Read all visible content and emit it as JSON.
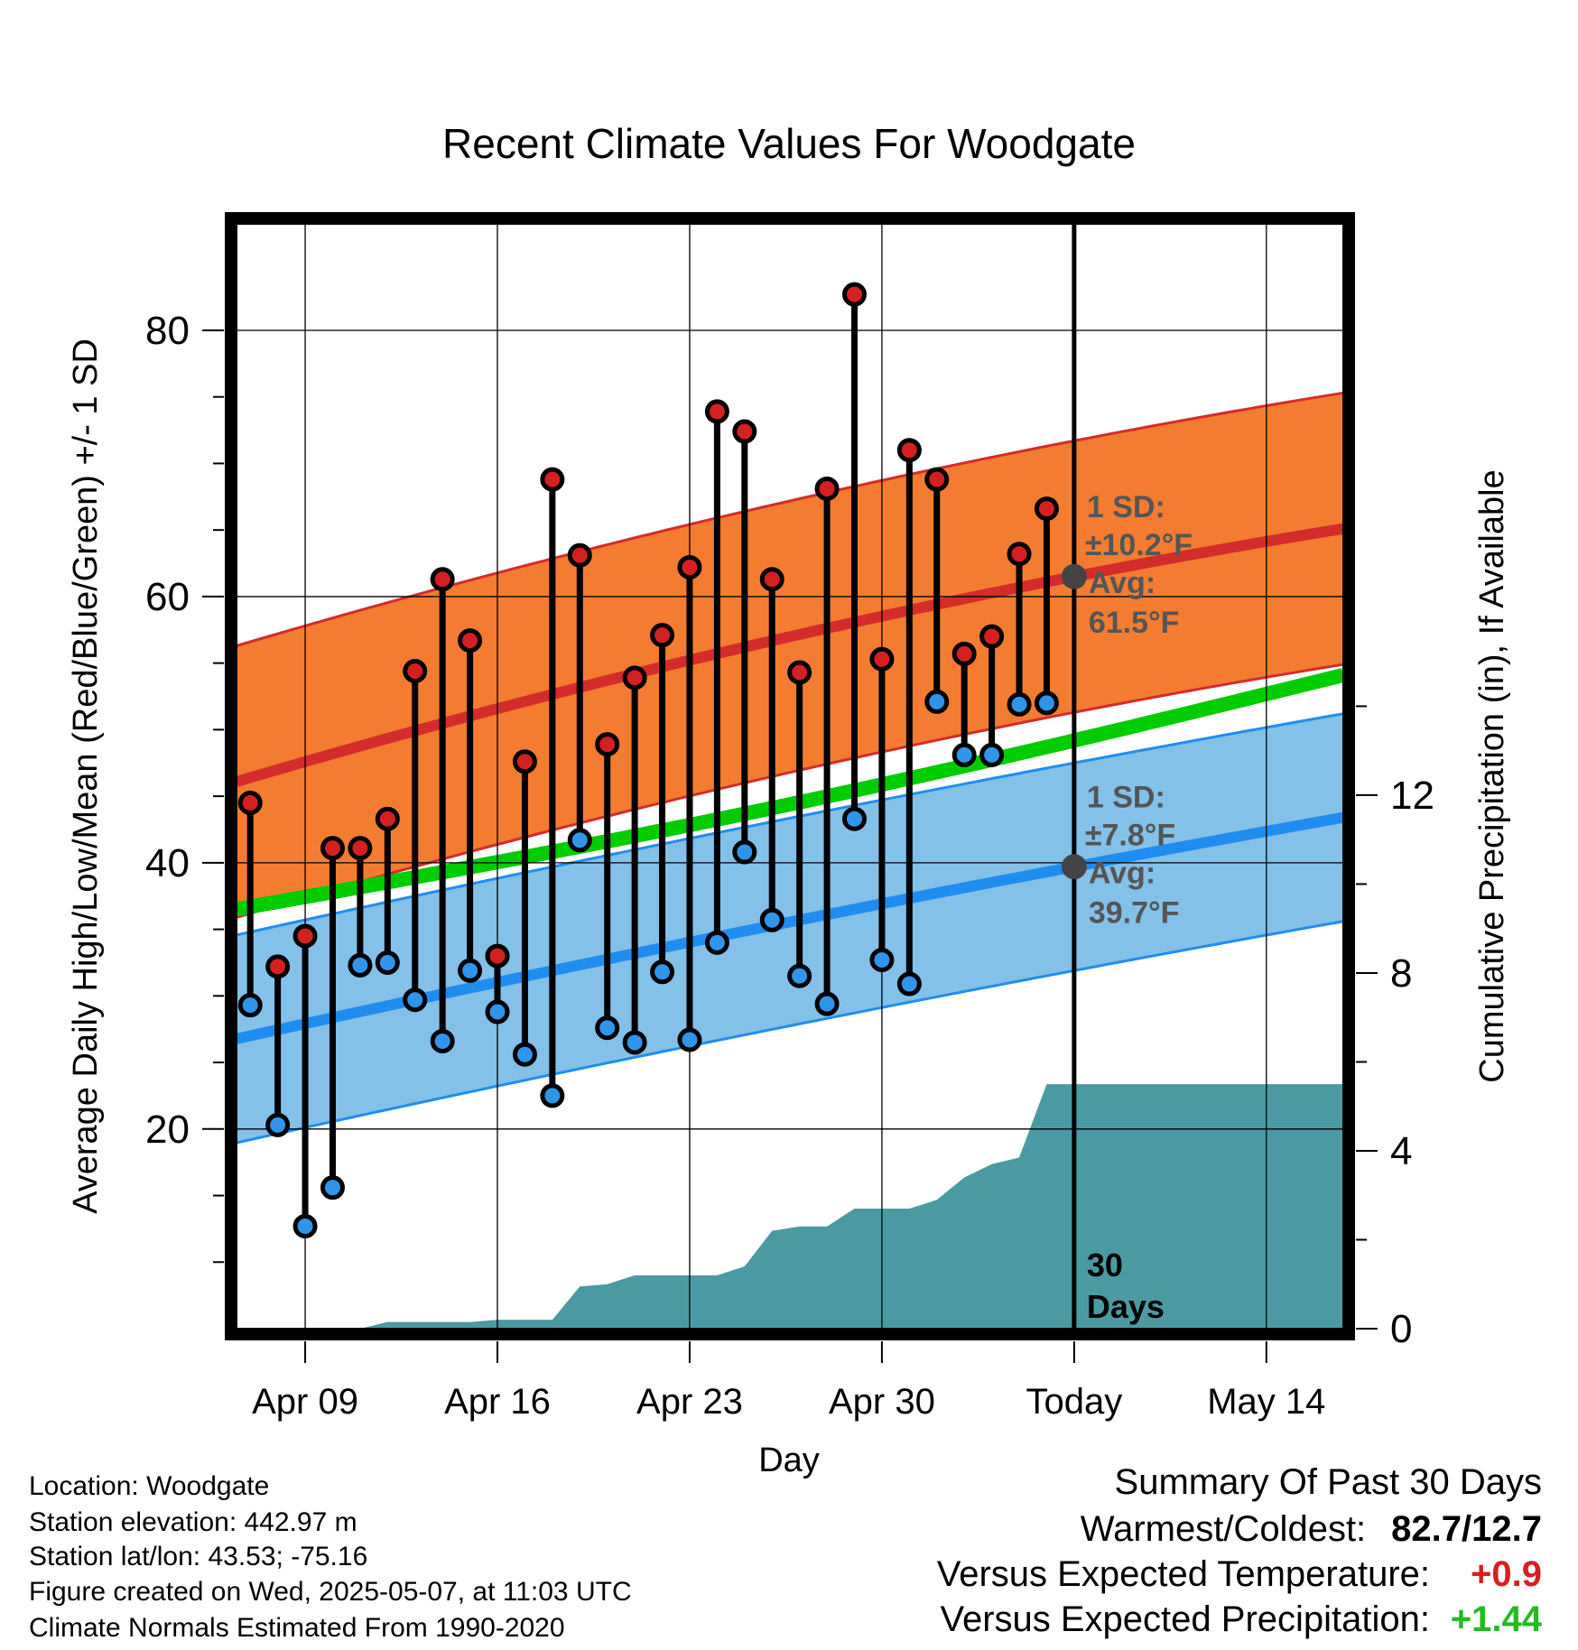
{
  "chart_data": {
    "type": "line",
    "title": "Recent Climate Values For Woodgate",
    "xlabel": "Day",
    "ylabel": "Average Daily High/Low/Mean (Red/Blue/Green) +/- 1 SD",
    "y2label": "Cumulative Precipitation (in), If Available",
    "x_tick_labels": [
      "Apr 09",
      "Apr 16",
      "Apr 23",
      "Apr 30",
      "Today",
      "May 14"
    ],
    "x_tick_days": [
      2,
      9,
      16,
      23,
      30,
      37
    ],
    "x_range_days": [
      -0.5,
      39.8
    ],
    "ylim": [
      5,
      88
    ],
    "yticks": [
      20,
      40,
      60,
      80
    ],
    "y2lim": [
      0,
      24.85
    ],
    "y2ticks": [
      0,
      4,
      8,
      12
    ],
    "grid": true,
    "today_day": 30,
    "today_label": "30 Days",
    "days": [
      0,
      1,
      2,
      3,
      4,
      5,
      6,
      7,
      8,
      9,
      10,
      11,
      12,
      13,
      14,
      15,
      16,
      17,
      18,
      19,
      20,
      21,
      22,
      23,
      24,
      25,
      26,
      27,
      28,
      29
    ],
    "daily_high": [
      44.5,
      32.2,
      34.5,
      41.1,
      41.1,
      43.3,
      54.4,
      61.3,
      56.7,
      33.0,
      47.6,
      68.8,
      63.1,
      48.9,
      53.9,
      57.1,
      62.2,
      73.9,
      72.4,
      61.3,
      54.3,
      68.1,
      82.7,
      55.3,
      71.0,
      68.8,
      55.7,
      57.0,
      63.2,
      66.6
    ],
    "daily_low": [
      29.3,
      20.3,
      12.7,
      15.6,
      32.3,
      32.5,
      29.7,
      26.6,
      31.9,
      28.8,
      25.6,
      22.5,
      41.7,
      27.6,
      26.5,
      31.8,
      26.7,
      34.0,
      40.8,
      35.7,
      31.5,
      29.4,
      43.3,
      32.7,
      30.9,
      52.1,
      48.1,
      48.1,
      51.9,
      52.0
    ],
    "normal_high": {
      "start": 46.4,
      "today": 61.5,
      "end": 65.1,
      "sd": 10.2
    },
    "normal_low": {
      "start": 27.0,
      "today": 39.7,
      "end": 43.4,
      "sd": 7.8
    },
    "normal_mean": {
      "start": 36.7,
      "end": 54.1
    },
    "precip_days": [
      0,
      1,
      2,
      3,
      4,
      5,
      6,
      7,
      8,
      9,
      10,
      11,
      12,
      13,
      14,
      15,
      16,
      17,
      18,
      19,
      20,
      21,
      22,
      23,
      24,
      25,
      26,
      27,
      28,
      29,
      40
    ],
    "precip_cumulative": [
      0,
      0,
      0,
      0,
      0,
      0.15,
      0.15,
      0.15,
      0.15,
      0.2,
      0.2,
      0.2,
      0.95,
      1.0,
      1.2,
      1.2,
      1.2,
      1.2,
      1.4,
      2.2,
      2.3,
      2.3,
      2.7,
      2.7,
      2.7,
      2.9,
      3.4,
      3.7,
      3.85,
      5.5,
      5.5
    ],
    "annotations": {
      "high_sd": [
        "1 SD:",
        "±10.2°F",
        "Avg:",
        "61.5°F"
      ],
      "low_sd": [
        "1 SD:",
        "±7.8°F",
        "Avg:",
        "39.7°F"
      ]
    },
    "colors": {
      "high_band": "#f47c30",
      "high_line": "#d42b2b",
      "low_band": "#84c1e8",
      "low_line": "#1f8df0",
      "mean_line": "#00cc00",
      "precip": "#4b9aa3",
      "high_dot": "#d42020",
      "low_dot": "#2f95ea",
      "annotation": "#555555",
      "positive_temp": "#d42020",
      "positive_precip": "#22bb22"
    }
  },
  "info": {
    "location": "Location: Woodgate",
    "elevation": "Station elevation: 442.97 m",
    "latlon": "Station lat/lon: 43.53; -75.16",
    "created": "Figure created on Wed, 2025-05-07, at 11:03 UTC",
    "normals": "Climate Normals Estimated From 1990-2020"
  },
  "summary": {
    "heading": "Summary Of Past 30 Days",
    "warmest_label": "Warmest/Coldest:",
    "warmest_value": "82.7/12.7",
    "temp_label": "Versus Expected Temperature:",
    "temp_value": "+0.9",
    "precip_label": "Versus Expected Precipitation:",
    "precip_value": "+1.44"
  }
}
